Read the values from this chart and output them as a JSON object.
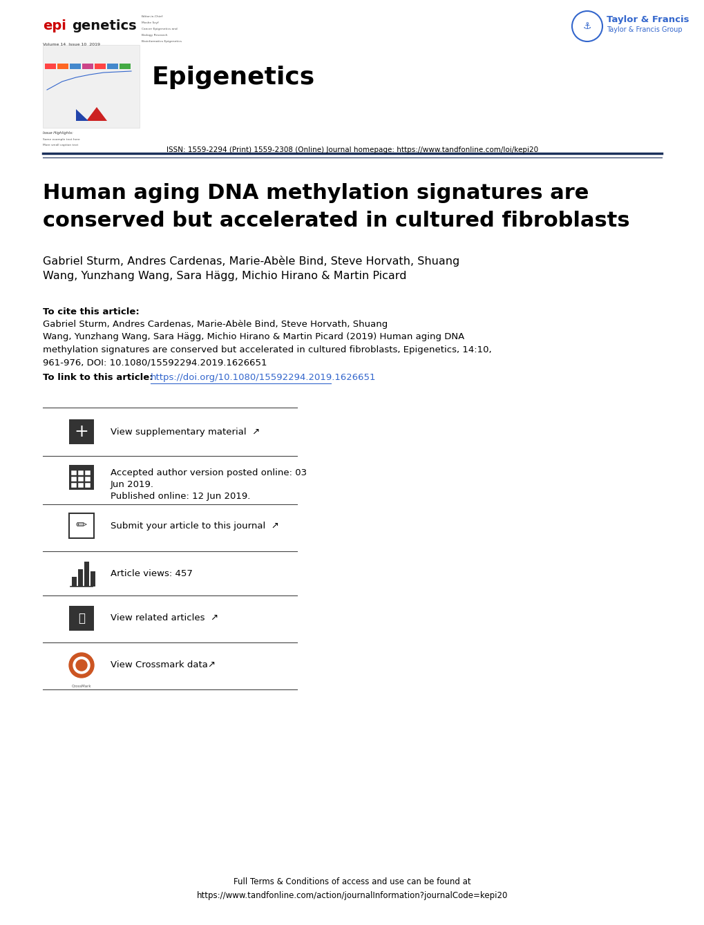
{
  "bg_color": "#ffffff",
  "title_line1": "Human aging DNA methylation signatures are",
  "title_line2": "conserved but accelerated in cultured fibroblasts",
  "journal_name": "Epigenetics",
  "authors_line1": "Gabriel Sturm, Andres Cardenas, Marie-Abèle Bind, Steve Horvath, Shuang",
  "authors_line2": "Wang, Yunzhang Wang, Sara Hägg, Michio Hirano & Martin Picard",
  "cite_label": "To cite this article:",
  "cite_body": "Gabriel Sturm, Andres Cardenas, Marie-Abèle Bind, Steve Horvath, Shuang\nWang, Yunzhang Wang, Sara Hägg, Michio Hirano & Martin Picard (2019) Human aging DNA\nmethylation signatures are conserved but accelerated in cultured fibroblasts, Epigenetics, 14:10,\n961-976, DOI: 10.1080/15592294.2019.1626651",
  "link_label": "To link to this article: ",
  "link_url": "https://doi.org/10.1080/15592294.2019.1626651",
  "issn_text": "ISSN: 1559-2294 (Print) 1559-2308 (Online) Journal homepage: https://www.tandfonline.com/loi/kepi20",
  "supp_text": "View supplementary material",
  "accepted_line1": "Accepted author version posted online: 03",
  "accepted_line2": "Jun 2019.",
  "accepted_line3": "Published online: 12 Jun 2019.",
  "submit_text": "Submit your article to this journal",
  "views_text": "Article views: 457",
  "related_text": "View related articles",
  "crossmark_text": "View Crossmark data",
  "footer_line1": "Full Terms & Conditions of access and use can be found at",
  "footer_line2": "https://www.tandfonline.com/action/journalInformation?journalCode=kepi20",
  "epi_red": "#cc0000",
  "tf_blue": "#3366cc",
  "dark_navy": "#1a2f5a",
  "text_color": "#000000",
  "link_color": "#3366cc",
  "icon_color": "#333333"
}
